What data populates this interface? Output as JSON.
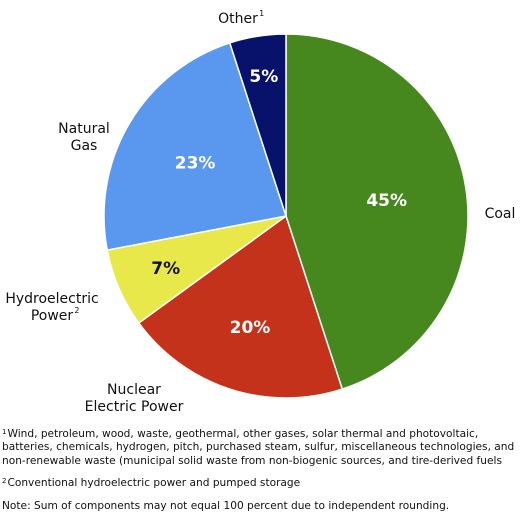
{
  "chart_data": {
    "type": "pie",
    "slices": [
      {
        "category": "Coal",
        "label_lines": [
          "Coal"
        ],
        "footnote": "",
        "value": 45,
        "value_label": "45%",
        "color": "#46881d"
      },
      {
        "category": "Nuclear Electric Power",
        "label_lines": [
          "Nuclear",
          "Electric Power"
        ],
        "footnote": "",
        "value": 20,
        "value_label": "20%",
        "color": "#c5321c"
      },
      {
        "category": "Hydroelectric Power",
        "label_lines": [
          "Hydroelectric",
          "Power"
        ],
        "footnote": "2",
        "value": 7,
        "value_label": "7%",
        "color": "#e9e84a"
      },
      {
        "category": "Natural Gas",
        "label_lines": [
          "Natural",
          "Gas"
        ],
        "footnote": "",
        "value": 23,
        "value_label": "23%",
        "color": "#5a97ee"
      },
      {
        "category": "Other",
        "label_lines": [
          "Other"
        ],
        "footnote": "1",
        "value": 5,
        "value_label": "5%",
        "color": "#08126a"
      }
    ]
  },
  "footnotes": [
    {
      "marker": "1",
      "text": "Wind, petroleum, wood, waste, geothermal, other gases, solar thermal and photovoltaic, batteries, chemicals, hydrogen, pitch, purchased steam, sulfur, miscellaneous technologies, and non-renewable waste (municipal solid waste from non-biogenic sources, and tire-derived fuels"
    },
    {
      "marker": "2",
      "text": "Conventional hydroelectric power and pumped storage"
    }
  ],
  "note": "Note: Sum of components may not equal 100 percent due to independent rounding."
}
